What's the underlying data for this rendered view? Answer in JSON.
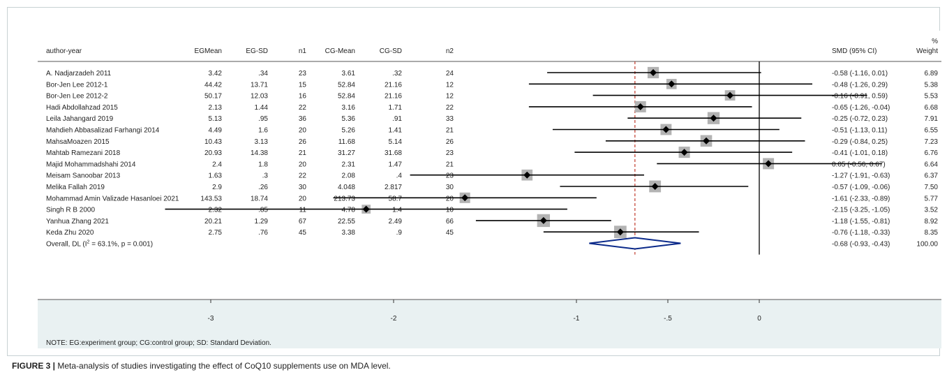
{
  "chart_data": {
    "type": "forest",
    "headers": {
      "study": "author-year",
      "eg_mean": "EGMean",
      "eg_sd": "EG-SD",
      "n1": "n1",
      "cg_mean": "CG-Mean",
      "cg_sd": "CG-SD",
      "n2": "n2",
      "smd": "SMD (95% CI)",
      "weight_pct": "%",
      "weight": "Weight"
    },
    "studies": [
      {
        "name": "A. Nadjarzadeh 2011",
        "eg_mean": "3.42",
        "eg_sd": ".34",
        "n1": "23",
        "cg_mean": "3.61",
        "cg_sd": ".32",
        "n2": "24",
        "smd": -0.58,
        "lo": -1.16,
        "hi": 0.01,
        "ci_text": "-0.58 (-1.16, 0.01)",
        "weight": "6.89"
      },
      {
        "name": "Bor-Jen Lee 2012-1",
        "eg_mean": "44.42",
        "eg_sd": "13.71",
        "n1": "15",
        "cg_mean": "52.84",
        "cg_sd": "21.16",
        "n2": "12",
        "smd": -0.48,
        "lo": -1.26,
        "hi": 0.29,
        "ci_text": "-0.48 (-1.26, 0.29)",
        "weight": "5.38"
      },
      {
        "name": "Bor-Jen Lee 2012-2",
        "eg_mean": "50.17",
        "eg_sd": "12.03",
        "n1": "16",
        "cg_mean": "52.84",
        "cg_sd": "21.16",
        "n2": "12",
        "smd": -0.16,
        "lo": -0.91,
        "hi": 0.59,
        "ci_text": "-0.16 (-0.91, 0.59)",
        "weight": "5.53"
      },
      {
        "name": "Hadi Abdollahzad 2015",
        "eg_mean": "2.13",
        "eg_sd": "1.44",
        "n1": "22",
        "cg_mean": "3.16",
        "cg_sd": "1.71",
        "n2": "22",
        "smd": -0.65,
        "lo": -1.26,
        "hi": -0.04,
        "ci_text": "-0.65 (-1.26, -0.04)",
        "weight": "6.68"
      },
      {
        "name": "Leila Jahangard 2019",
        "eg_mean": "5.13",
        "eg_sd": ".95",
        "n1": "36",
        "cg_mean": "5.36",
        "cg_sd": ".91",
        "n2": "33",
        "smd": -0.25,
        "lo": -0.72,
        "hi": 0.23,
        "ci_text": "-0.25 (-0.72, 0.23)",
        "weight": "7.91"
      },
      {
        "name": "Mahdieh Abbasalizad Farhangi 2014",
        "eg_mean": "4.49",
        "eg_sd": "1.6",
        "n1": "20",
        "cg_mean": "5.26",
        "cg_sd": "1.41",
        "n2": "21",
        "smd": -0.51,
        "lo": -1.13,
        "hi": 0.11,
        "ci_text": "-0.51 (-1.13, 0.11)",
        "weight": "6.55"
      },
      {
        "name": "MahsaMoazen 2015",
        "eg_mean": "10.43",
        "eg_sd": "3.13",
        "n1": "26",
        "cg_mean": "11.68",
        "cg_sd": "5.14",
        "n2": "26",
        "smd": -0.29,
        "lo": -0.84,
        "hi": 0.25,
        "ci_text": "-0.29 (-0.84, 0.25)",
        "weight": "7.23"
      },
      {
        "name": "Mahtab Ramezani 2018",
        "eg_mean": "20.93",
        "eg_sd": "14.38",
        "n1": "21",
        "cg_mean": "31.27",
        "cg_sd": "31.68",
        "n2": "23",
        "smd": -0.41,
        "lo": -1.01,
        "hi": 0.18,
        "ci_text": "-0.41 (-1.01, 0.18)",
        "weight": "6.76"
      },
      {
        "name": "Majid Mohammadshahi 2014",
        "eg_mean": "2.4",
        "eg_sd": "1.8",
        "n1": "20",
        "cg_mean": "2.31",
        "cg_sd": "1.47",
        "n2": "21",
        "smd": 0.05,
        "lo": -0.56,
        "hi": 0.67,
        "ci_text": "0.05 (-0.56, 0.67)",
        "weight": "6.64"
      },
      {
        "name": "Meisam Sanoobar 2013",
        "eg_mean": "1.63",
        "eg_sd": ".3",
        "n1": "22",
        "cg_mean": "2.08",
        "cg_sd": ".4",
        "n2": "23",
        "smd": -1.27,
        "lo": -1.91,
        "hi": -0.63,
        "ci_text": "-1.27 (-1.91, -0.63)",
        "weight": "6.37"
      },
      {
        "name": "Melika Fallah 2019",
        "eg_mean": "2.9",
        "eg_sd": ".26",
        "n1": "30",
        "cg_mean": "4.048",
        "cg_sd": "2.817",
        "n2": "30",
        "smd": -0.57,
        "lo": -1.09,
        "hi": -0.06,
        "ci_text": "-0.57 (-1.09, -0.06)",
        "weight": "7.50"
      },
      {
        "name": "Mohammad Amin Valizade Hasanloei 2021",
        "eg_mean": "143.53",
        "eg_sd": "18.74",
        "n1": "20",
        "cg_mean": "213.73",
        "cg_sd": "58.7",
        "n2": "20",
        "smd": -1.61,
        "lo": -2.33,
        "hi": -0.89,
        "ci_text": "-1.61 (-2.33, -0.89)",
        "weight": "5.77"
      },
      {
        "name": "Singh R B 2000",
        "eg_mean": "2.32",
        "eg_sd": ".85",
        "n1": "11",
        "cg_mean": "4.78",
        "cg_sd": "1.4",
        "n2": "10",
        "smd": -2.15,
        "lo": -3.25,
        "hi": -1.05,
        "ci_text": "-2.15 (-3.25, -1.05)",
        "weight": "3.52"
      },
      {
        "name": "Yanhua Zhang 2021",
        "eg_mean": "20.21",
        "eg_sd": "1.29",
        "n1": "67",
        "cg_mean": "22.55",
        "cg_sd": "2.49",
        "n2": "66",
        "smd": -1.18,
        "lo": -1.55,
        "hi": -0.81,
        "ci_text": "-1.18 (-1.55, -0.81)",
        "weight": "8.92"
      },
      {
        "name": "Keda Zhu 2020",
        "eg_mean": "2.75",
        "eg_sd": ".76",
        "n1": "45",
        "cg_mean": "3.38",
        "cg_sd": ".9",
        "n2": "45",
        "smd": -0.76,
        "lo": -1.18,
        "hi": -0.33,
        "ci_text": "-0.76 (-1.18, -0.33)",
        "weight": "8.35"
      }
    ],
    "overall": {
      "label_prefix": "Overall, DL (I",
      "label_sup": "2",
      "label_suffix": " = 63.1%, p = 0.001)",
      "smd": -0.68,
      "lo": -0.93,
      "hi": -0.43,
      "ci_text": "-0.68 (-0.93, -0.43)",
      "weight": "100.00"
    },
    "xaxis": {
      "ticks": [
        -3,
        -2,
        -1,
        -0.5,
        0
      ],
      "tick_labels": [
        "-3",
        "-2",
        "-1",
        "-.5",
        "0"
      ],
      "range": [
        -3.25,
        0.59
      ]
    },
    "null_line": 0,
    "overall_line": -0.68,
    "note": "NOTE: EG:experiment group; CG:control group; SD: Standard Deviation."
  },
  "caption": {
    "label": "FIGURE 3 |",
    "text": " Meta-analysis of studies investigating the effect of CoQ10 supplements use on MDA level."
  },
  "colors": {
    "panel_bg": "#e9f1f2",
    "diamond": "#0b2a8a",
    "overall_line": "#c0392b",
    "marker_box": "#b3b3b3"
  }
}
